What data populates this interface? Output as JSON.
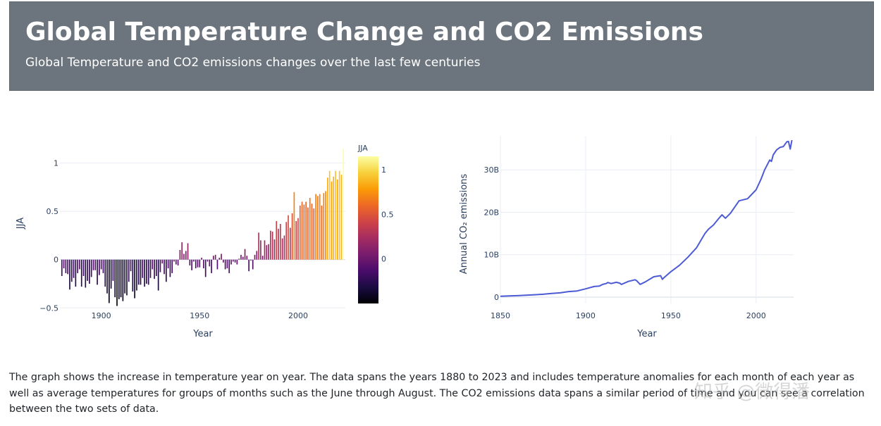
{
  "header": {
    "title": "Global Temperature Change and CO2 Emissions",
    "subtitle": "Global Temperature and CO2 emissions changes over the last few centuries"
  },
  "description": "The graph shows the increase in temperature year on year. The data spans the years 1880 to 2023 and includes temperature anomalies for each month of each year as well as average temperatures for groups of months such as the June through August. The CO2 emissions data spans a similar period of time and you can see a correlation between the two sets of data.",
  "watermark": "知乎 @微得潘",
  "colors": {
    "line": "#4c5bd4",
    "grid": "#e9edf4",
    "axis_text": "#2a3f5f",
    "inferno": [
      "#000004",
      "#1b0c41",
      "#4a0c6b",
      "#781c6d",
      "#a52c60",
      "#cf4446",
      "#ed6925",
      "#fb9b06",
      "#f7d13d",
      "#fcffa4"
    ]
  },
  "chart_data": [
    {
      "type": "bar",
      "title": "",
      "xlabel": "Year",
      "ylabel": "JJA",
      "colorbar_title": "JJA",
      "colorscale": "Inferno",
      "x_start": 1880,
      "xlim": [
        1879,
        2024
      ],
      "ylim": [
        -0.52,
        1.18
      ],
      "xticks": [
        1900,
        1950,
        2000
      ],
      "yticks": [
        -0.5,
        0,
        0.5,
        1
      ],
      "ytick_labels": [
        "−0.5",
        "0",
        "0.5",
        "1"
      ],
      "colorbar_ticks": [
        0,
        0.5,
        1
      ],
      "colorbar_range": [
        -0.5,
        1.15
      ],
      "values": [
        -0.17,
        -0.09,
        -0.14,
        -0.15,
        -0.31,
        -0.23,
        -0.19,
        -0.28,
        -0.14,
        -0.1,
        -0.28,
        -0.17,
        -0.29,
        -0.22,
        -0.25,
        -0.18,
        -0.11,
        -0.11,
        -0.26,
        -0.16,
        -0.1,
        -0.14,
        -0.28,
        -0.35,
        -0.45,
        -0.3,
        -0.22,
        -0.39,
        -0.48,
        -0.41,
        -0.39,
        -0.43,
        -0.35,
        -0.37,
        -0.23,
        -0.12,
        -0.33,
        -0.4,
        -0.32,
        -0.26,
        -0.26,
        -0.19,
        -0.28,
        -0.25,
        -0.26,
        -0.19,
        -0.1,
        -0.2,
        -0.17,
        -0.32,
        -0.13,
        -0.04,
        -0.15,
        -0.23,
        -0.09,
        -0.18,
        -0.14,
        -0.02,
        -0.05,
        -0.06,
        0.1,
        0.18,
        0.06,
        0.09,
        0.17,
        -0.06,
        -0.11,
        -0.02,
        -0.09,
        -0.08,
        -0.08,
        0.02,
        -0.09,
        -0.18,
        -0.02,
        -0.07,
        -0.14,
        0.04,
        0.05,
        -0.1,
        0.02,
        0.06,
        -0.03,
        -0.1,
        -0.09,
        -0.14,
        -0.05,
        -0.02,
        -0.03,
        -0.05,
        0.01,
        0.05,
        0.03,
        0.11,
        0.04,
        -0.12,
        -0.01,
        -0.1,
        0.05,
        0.09,
        0.28,
        0.2,
        0.04,
        0.2,
        0.15,
        0.16,
        0.3,
        0.29,
        0.21,
        0.4,
        0.32,
        0.37,
        0.22,
        0.25,
        0.39,
        0.46,
        0.33,
        0.48,
        0.7,
        0.4,
        0.43,
        0.56,
        0.6,
        0.57,
        0.6,
        0.54,
        0.64,
        0.58,
        0.53,
        0.68,
        0.66,
        0.68,
        0.56,
        0.69,
        0.71,
        0.85,
        0.92,
        0.81,
        0.86,
        0.92,
        0.83,
        0.92,
        0.88,
        1.15
      ]
    },
    {
      "type": "line",
      "title": "",
      "xlabel": "Year",
      "ylabel": "Annual CO₂ emissions",
      "xlim": [
        1850,
        2022
      ],
      "ylim": [
        -1.5,
        38
      ],
      "xticks": [
        1850,
        1900,
        1950,
        2000
      ],
      "yticks": [
        0,
        10,
        20,
        30
      ],
      "ytick_labels": [
        "0",
        "10B",
        "20B",
        "30B"
      ],
      "series": [
        {
          "name": "Annual CO₂ emissions",
          "x": [
            1850,
            1855,
            1860,
            1865,
            1870,
            1875,
            1880,
            1885,
            1890,
            1895,
            1900,
            1905,
            1908,
            1910,
            1912,
            1913,
            1915,
            1918,
            1920,
            1921,
            1925,
            1929,
            1930,
            1932,
            1935,
            1940,
            1944,
            1945,
            1946,
            1950,
            1955,
            1960,
            1965,
            1970,
            1972,
            1975,
            1978,
            1980,
            1982,
            1985,
            1990,
            1995,
            2000,
            2003,
            2005,
            2008,
            2009,
            2010,
            2012,
            2014,
            2016,
            2018,
            2019,
            2020,
            2021
          ],
          "y": [
            0.2,
            0.27,
            0.35,
            0.45,
            0.55,
            0.68,
            0.85,
            1.0,
            1.3,
            1.45,
            1.95,
            2.5,
            2.6,
            3.0,
            3.2,
            3.45,
            3.2,
            3.5,
            3.3,
            3.0,
            3.7,
            4.1,
            3.85,
            3.0,
            3.6,
            4.8,
            5.05,
            4.2,
            4.6,
            6.0,
            7.5,
            9.4,
            11.6,
            15.0,
            16.0,
            17.0,
            18.5,
            19.4,
            18.6,
            19.8,
            22.7,
            23.2,
            25.3,
            27.9,
            30.0,
            32.3,
            32.0,
            33.5,
            34.7,
            35.3,
            35.5,
            36.6,
            36.7,
            34.9,
            37.0
          ]
        }
      ]
    }
  ]
}
